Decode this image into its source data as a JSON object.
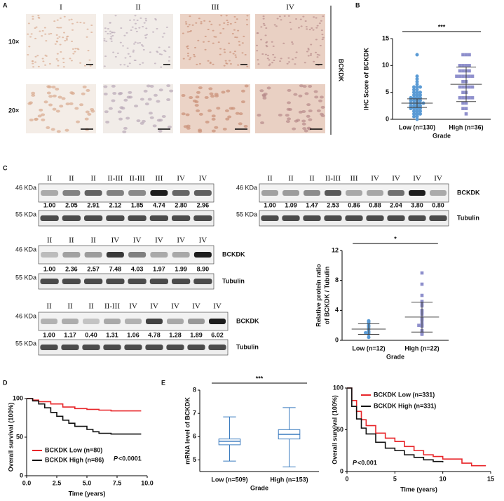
{
  "panel_labels": [
    "A",
    "B",
    "C",
    "D",
    "E"
  ],
  "histology": {
    "columns": [
      "I",
      "II",
      "III",
      "IV"
    ],
    "rows": [
      "10×",
      "20×"
    ],
    "marker": "BCKDK"
  },
  "blots": [
    {
      "lanes": [
        "II",
        "II",
        "II",
        "II-III",
        "II-III",
        "III",
        "IV",
        "IV"
      ],
      "ratios": [
        1,
        2.05,
        2.91,
        2.12,
        1.85,
        4.74,
        2.8,
        2.96
      ],
      "ratio_labels": [
        "1.00",
        "2.05",
        "2.91",
        "2.12",
        "1.85",
        "4.74",
        "2.80",
        "2.96"
      ],
      "ladder": [
        "46 KDa",
        "55 KDa"
      ]
    },
    {
      "lanes": [
        "II",
        "II",
        "II",
        "II-III",
        "III",
        "IV",
        "IV",
        "IV",
        "IV"
      ],
      "ratios": [
        1,
        1.09,
        1.47,
        2.53,
        0.86,
        0.88,
        2.04,
        3.8,
        0.8
      ],
      "ratio_labels": [
        "1.00",
        "1.09",
        "1.47",
        "2.53",
        "0.86",
        "0.88",
        "2.04",
        "3.80",
        "0.80"
      ],
      "ladder": [
        "46 KDa",
        "55 KDa"
      ],
      "targets": [
        "BCKDK",
        "Tubulin"
      ]
    },
    {
      "lanes": [
        "II",
        "II",
        "II",
        "IV",
        "IV",
        "IV",
        "IV",
        "IV"
      ],
      "ratios": [
        1,
        2.36,
        2.57,
        7.48,
        4.03,
        1.97,
        1.99,
        8.9
      ],
      "ratio_labels": [
        "1.00",
        "2.36",
        "2.57",
        "7.48",
        "4.03",
        "1.97",
        "1.99",
        "8.90"
      ],
      "ladder": [
        "46 KDa",
        "55 KDa"
      ],
      "targets": [
        "BCKDK",
        "Tubulin"
      ]
    },
    {
      "lanes": [
        "II",
        "II",
        "II",
        "II-III",
        "IV",
        "IV",
        "IV",
        "IV",
        "IV"
      ],
      "ratios": [
        1,
        1.17,
        0.4,
        1.31,
        1.06,
        4.78,
        1.28,
        1.89,
        6.02
      ],
      "ratio_labels": [
        "1.00",
        "1.17",
        "0.40",
        "1.31",
        "1.06",
        "4.78",
        "1.28",
        "1.89",
        "6.02"
      ],
      "ladder": [
        "46 KDa",
        "55 KDa"
      ],
      "targets": [
        "BCKDK",
        "Tubulin"
      ]
    }
  ],
  "chart_data": [
    {
      "type": "dotplot",
      "ylabel": [
        "IHC Score of BCKDK"
      ],
      "xlabel": "Grade",
      "annotation": "***",
      "categories": [
        "Low (n=130)",
        "High (n=36)"
      ],
      "ylim": [
        0,
        15
      ],
      "yticks": [
        0,
        5,
        10,
        15
      ],
      "groups": [
        {
          "color": "#5b9bd5",
          "marker": "circle",
          "mean": 3.0,
          "sd": 0.8,
          "values": [
            12,
            8,
            7.5,
            7,
            6.5,
            6,
            6,
            6,
            5.5,
            5.5,
            5,
            5,
            5,
            4.8,
            4.5,
            4.5,
            4.5,
            4.2,
            4,
            4,
            4,
            4,
            3.8,
            3.5,
            3.5,
            3.5,
            3.5,
            3.2,
            3,
            3,
            3,
            3,
            3,
            2.8,
            2.5,
            2.5,
            2.5,
            2.5,
            2.2,
            2,
            2,
            2,
            2,
            1.8,
            1.5,
            1.5,
            1.5,
            1.2,
            1,
            1,
            1,
            0.8,
            0.5,
            0.5,
            0
          ]
        },
        {
          "color": "#8e8fcc",
          "marker": "square",
          "mean": 6.5,
          "sd": 3.2,
          "values": [
            12,
            12,
            12,
            10,
            10,
            10,
            10,
            9,
            9,
            9,
            9,
            8,
            8,
            8,
            8,
            8,
            8,
            7,
            7,
            6,
            6,
            6,
            6,
            6,
            5,
            5,
            4,
            4,
            4,
            4,
            4,
            3,
            3,
            2,
            2,
            1
          ]
        }
      ]
    },
    {
      "type": "dotplot",
      "ylabel": [
        "Relative protein ratio",
        "of BCKDK / Tubulin"
      ],
      "xlabel": "Grade",
      "annotation": "*",
      "categories": [
        "Low (n=12)",
        "High (n=22)"
      ],
      "ylim": [
        0,
        12
      ],
      "yticks": [
        0,
        4,
        8,
        12
      ],
      "groups": [
        {
          "color": "#5b9bd5",
          "marker": "circle",
          "mean": 1.5,
          "sd": 0.7,
          "values": [
            2.6,
            2.5,
            2.3,
            2.0,
            1.8,
            1.5,
            1.2,
            1.0,
            1.0,
            0.9,
            0.8,
            0.4
          ]
        },
        {
          "color": "#8e8fcc",
          "marker": "square",
          "mean": 3.1,
          "sd": 2.0,
          "values": [
            9.0,
            7.5,
            6.0,
            5.2,
            4.8,
            4.6,
            4.0,
            3.8,
            3.5,
            3.0,
            2.9,
            2.8,
            2.5,
            2.1,
            2.0,
            2.0,
            1.9,
            1.3,
            1.2,
            1.0,
            0.9,
            0.8
          ]
        }
      ]
    },
    {
      "type": "line",
      "step": true,
      "ylabel": [
        "Overall survival (100%)"
      ],
      "xlabel": "Time (years)",
      "legend": "lower left",
      "p_label": "P",
      "p_value": "<0.0001",
      "xlim": [
        0,
        10
      ],
      "xticks": [
        {
          "value": 0,
          "label": "0.0"
        },
        {
          "value": 2.5,
          "label": "2.5"
        },
        {
          "value": 5,
          "label": "5.0"
        },
        {
          "value": 7.5,
          "label": "7.5"
        },
        {
          "value": 10,
          "label": "10.0"
        }
      ],
      "ylim": [
        0,
        100
      ],
      "yticks": [
        0,
        50,
        100
      ],
      "series": [
        {
          "name": "BCKDK Low (n=80)",
          "color": "#e8262a",
          "x": [
            0,
            0.5,
            1,
            2,
            3,
            4,
            5,
            6,
            7,
            9.5
          ],
          "values": [
            100,
            98,
            96,
            93,
            89,
            87,
            86,
            85,
            84,
            84
          ]
        },
        {
          "name": "BCKDK High (n=86)",
          "color": "#111111",
          "x": [
            0,
            0.5,
            1,
            1.5,
            2,
            2.5,
            3,
            3.5,
            4,
            5,
            5.5,
            6,
            7,
            9.5
          ],
          "values": [
            100,
            97,
            93,
            88,
            82,
            77,
            72,
            68,
            64,
            60,
            57,
            55,
            54,
            54
          ]
        }
      ]
    },
    {
      "type": "box",
      "ylabel": [
        "mRNA level of BCKDK"
      ],
      "xlabel": "Grade",
      "annotation": "***",
      "categories": [
        "Low (n=509)",
        "High (n=153)"
      ],
      "ylim": [
        4.5,
        8
      ],
      "yticks": [
        5,
        6,
        7,
        8
      ],
      "color": "#3a7bbf",
      "boxes": [
        {
          "min": 4.95,
          "q1": 5.65,
          "median": 5.8,
          "q3": 5.9,
          "max": 6.85
        },
        {
          "min": 4.7,
          "q1": 5.9,
          "median": 6.1,
          "q3": 6.3,
          "max": 7.25
        }
      ]
    },
    {
      "type": "line",
      "step": true,
      "ylabel": [
        "Overall survival (100%)"
      ],
      "xlabel": "Time (years)",
      "legend": "upper right",
      "p_label": "P",
      "p_value": "<0.001",
      "xlim": [
        0,
        15
      ],
      "xticks": [
        0,
        5,
        10,
        15
      ],
      "ylim": [
        0,
        100
      ],
      "yticks": [
        0,
        50,
        100
      ],
      "series": [
        {
          "name": "BCKDK Low (n=331)",
          "color": "#e8262a",
          "x": [
            0,
            0.5,
            1,
            1.5,
            2,
            3,
            4,
            5,
            6,
            7,
            8,
            9,
            10,
            12,
            13,
            14.5
          ],
          "values": [
            100,
            85,
            72,
            62,
            55,
            46,
            40,
            36,
            30,
            25,
            20,
            18,
            15,
            10,
            7,
            7
          ]
        },
        {
          "name": "BCKDK High (n=331)",
          "color": "#111111",
          "x": [
            0,
            0.5,
            1,
            1.5,
            2,
            3,
            4,
            5,
            6,
            7,
            8,
            9,
            10
          ],
          "values": [
            100,
            78,
            63,
            52,
            45,
            35,
            28,
            25,
            20,
            17,
            14,
            12,
            11
          ]
        }
      ]
    }
  ]
}
